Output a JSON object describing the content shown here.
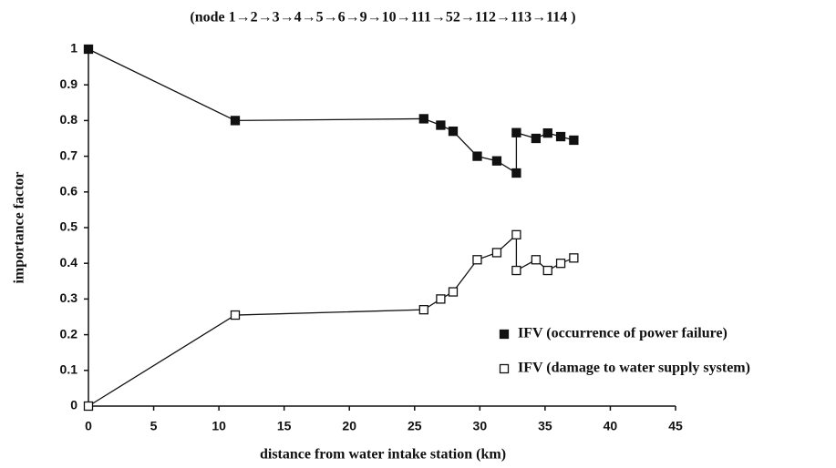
{
  "chart_data": {
    "type": "line",
    "annotation": "(node 1→2→3→4→5→6→9→10→111→52→112→113→114 )",
    "x_label": "distance from water intake station (km)",
    "y_label": "importance factor",
    "xlim": [
      0,
      45
    ],
    "xticks": [
      0,
      5,
      10,
      15,
      20,
      25,
      30,
      35,
      40,
      45
    ],
    "ylim": [
      0,
      1
    ],
    "yticks": [
      0,
      0.1,
      0.2,
      0.3,
      0.4,
      0.5,
      0.6,
      0.7,
      0.8,
      0.9,
      1
    ],
    "legend": "lower right",
    "series": [
      {
        "name": "IFV (occurrence of power failure)",
        "color": "#111111",
        "marker": "filled-square",
        "x": [
          0,
          11.25,
          25.7,
          27.0,
          27.95,
          29.8,
          31.3,
          32.8,
          32.8,
          34.3,
          35.2,
          36.2,
          37.2
        ],
        "values": [
          1.0,
          0.8,
          0.805,
          0.787,
          0.77,
          0.7,
          0.687,
          0.653,
          0.766,
          0.75,
          0.765,
          0.755,
          0.745
        ]
      },
      {
        "name": "IFV (damage to water supply system)",
        "color": "#111111",
        "marker": "open-square",
        "x": [
          0,
          11.25,
          25.7,
          27.0,
          27.95,
          29.8,
          31.3,
          32.8,
          32.8,
          34.3,
          35.2,
          36.2,
          37.2
        ],
        "values": [
          0,
          0.255,
          0.27,
          0.3,
          0.32,
          0.41,
          0.43,
          0.48,
          0.38,
          0.41,
          0.38,
          0.4,
          0.415
        ]
      }
    ]
  }
}
